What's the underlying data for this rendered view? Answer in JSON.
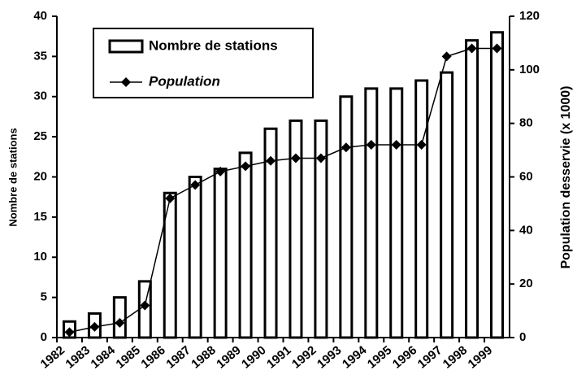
{
  "chart_data": {
    "type": "bar",
    "categories": [
      "1982",
      "1983",
      "1984",
      "1985",
      "1986",
      "1987",
      "1988",
      "1989",
      "1990",
      "1991",
      "1992",
      "1993",
      "1994",
      "1995",
      "1996",
      "1997",
      "1998",
      "1999"
    ],
    "series": [
      {
        "name": "Nombre de stations",
        "type": "bar",
        "color": "#ffffff",
        "values": [
          2,
          3,
          5,
          7,
          18,
          20,
          21,
          23,
          26,
          27,
          27,
          30,
          31,
          31,
          32,
          33,
          37,
          38
        ]
      },
      {
        "name": "Population",
        "type": "line",
        "axis": "y2",
        "color": "#000000",
        "values": [
          2,
          4,
          5.5,
          12,
          52,
          57,
          62,
          64,
          66,
          67,
          67,
          71,
          72,
          72,
          72,
          105,
          108,
          108
        ]
      }
    ],
    "y_label": "Nombre de stations",
    "y2_label": "Population desservie (x 1000)",
    "ylim": [
      0,
      40
    ],
    "yticks": [
      0,
      5,
      10,
      15,
      20,
      25,
      30,
      35,
      40
    ],
    "y2lim": [
      0,
      120
    ],
    "y2ticks": [
      0,
      20,
      40,
      60,
      80,
      100,
      120
    ],
    "legend": "top-left"
  }
}
